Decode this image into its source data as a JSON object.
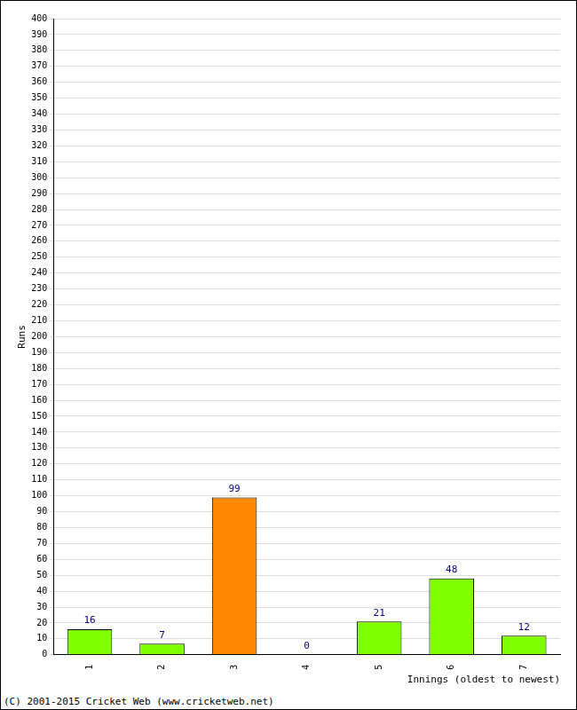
{
  "chart_data": {
    "type": "bar",
    "categories": [
      "1",
      "2",
      "3",
      "4",
      "5",
      "6",
      "7"
    ],
    "values": [
      16,
      7,
      99,
      0,
      21,
      48,
      12
    ],
    "colors": [
      "#80ff00",
      "#80ff00",
      "#ff8800",
      "#80ff00",
      "#80ff00",
      "#80ff00",
      "#80ff00"
    ],
    "x_label": "Innings (oldest to newest)",
    "y_label": "Runs",
    "ylim": [
      0,
      400
    ],
    "yticks": [
      0,
      10,
      20,
      30,
      40,
      50,
      60,
      70,
      80,
      90,
      100,
      110,
      120,
      130,
      140,
      150,
      160,
      170,
      180,
      190,
      200,
      210,
      220,
      230,
      240,
      250,
      260,
      270,
      280,
      290,
      300,
      310,
      320,
      330,
      340,
      350,
      360,
      370,
      380,
      390,
      400
    ],
    "grid": true,
    "data_labels": true,
    "annotations": [
      "(C) 2001-2015 Cricket Web (www.cricketweb.net)"
    ]
  }
}
